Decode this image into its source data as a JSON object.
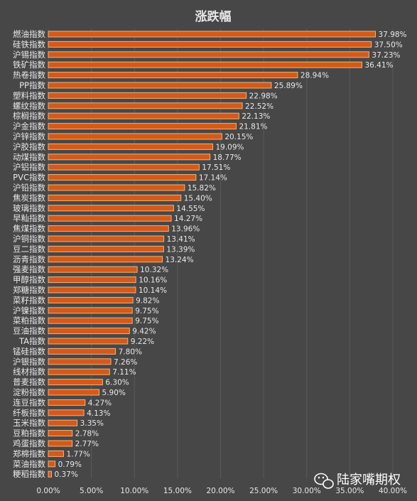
{
  "chart_data": {
    "type": "bar",
    "orientation": "horizontal",
    "title": "涨跌幅",
    "xlim": [
      0,
      40
    ],
    "x_ticks": [
      0,
      5,
      10,
      15,
      20,
      25,
      30,
      35,
      40
    ],
    "x_tick_labels": [
      "0.00%",
      "5.00%",
      "10.00%",
      "15.00%",
      "20.00%",
      "25.00%",
      "30.00%",
      "35.00%",
      "40.00%"
    ],
    "grid": "vertical",
    "bar_color": "#d35a1a",
    "bar_edge_color": "#f2b27a",
    "categories": [
      "燃油指数",
      "硅铁指数",
      "沪锡指数",
      "铁矿指数",
      "热卷指数",
      "PP指数",
      "塑料指数",
      "螺纹指数",
      "棕榈指数",
      "沪金指数",
      "沪锌指数",
      "沪胶指数",
      "动煤指数",
      "沪铝指数",
      "PVC指数",
      "沪铅指数",
      "焦炭指数",
      "玻璃指数",
      "早籼指数",
      "焦煤指数",
      "沪铜指数",
      "豆二指数",
      "沥青指数",
      "强麦指数",
      "甲醇指数",
      "郑糖指数",
      "菜籽指数",
      "沪镍指数",
      "菜粕指数",
      "豆油指数",
      "TA指数",
      "锰硅指数",
      "沪银指数",
      "线材指数",
      "普麦指数",
      "淀粉指数",
      "连豆指数",
      "纤板指数",
      "玉米指数",
      "豆粕指数",
      "鸡蛋指数",
      "郑棉指数",
      "菜油指数",
      "粳稻指数"
    ],
    "values": [
      37.98,
      37.5,
      37.23,
      36.41,
      28.94,
      25.89,
      22.98,
      22.52,
      22.13,
      21.81,
      20.15,
      19.09,
      18.77,
      17.51,
      17.14,
      15.82,
      15.4,
      14.55,
      14.27,
      13.96,
      13.41,
      13.39,
      13.24,
      10.32,
      10.16,
      10.14,
      9.82,
      9.75,
      9.75,
      9.42,
      9.22,
      7.8,
      7.26,
      7.11,
      6.3,
      5.9,
      4.27,
      4.13,
      3.35,
      2.78,
      2.77,
      1.77,
      0.79,
      0.37
    ],
    "value_labels": [
      "37.98%",
      "37.50%",
      "37.23%",
      "36.41%",
      "28.94%",
      "25.89%",
      "22.98%",
      "22.52%",
      "22.13%",
      "21.81%",
      "20.15%",
      "19.09%",
      "18.77%",
      "17.51%",
      "17.14%",
      "15.82%",
      "15.40%",
      "14.55%",
      "14.27%",
      "13.96%",
      "13.41%",
      "13.39%",
      "13.24%",
      "10.32%",
      "10.16%",
      "10.14%",
      "9.82%",
      "9.75%",
      "9.75%",
      "9.42%",
      "9.22%",
      "7.80%",
      "7.26%",
      "7.11%",
      "6.30%",
      "5.90%",
      "4.27%",
      "4.13%",
      "3.35%",
      "2.78%",
      "2.77%",
      "1.77%",
      "0.79%",
      "0.37%"
    ]
  },
  "watermark": {
    "icon": "wechat-icon",
    "text": "陆家嘴期权"
  }
}
